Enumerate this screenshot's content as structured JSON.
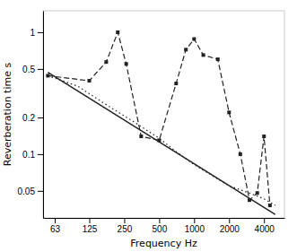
{
  "chart_data": {
    "type": "line",
    "xlabel": "Frequency Hz",
    "ylabel": "Reverberation time s",
    "log": true,
    "grid": false,
    "xlim": [
      50,
      6000
    ],
    "ylim": [
      0.03,
      1.5
    ],
    "xticks": [
      63,
      125,
      250,
      500,
      1000,
      2000,
      4000
    ],
    "yticks": [
      0.05,
      0.1,
      0.2,
      0.5,
      1
    ],
    "series": [
      {
        "color": "#222222",
        "line_style": "solid",
        "x": [
          55,
          5000
        ],
        "values": [
          0.47,
          0.032
        ]
      },
      {
        "color": "#222222",
        "line_style": "dotted",
        "x": [
          55,
          100,
          150,
          200,
          300,
          400,
          500,
          700,
          1000,
          1500,
          2000,
          3000,
          4000,
          5000
        ],
        "values": [
          0.44,
          0.36,
          0.28,
          0.235,
          0.185,
          0.155,
          0.135,
          0.105,
          0.082,
          0.065,
          0.055,
          0.048,
          0.043,
          0.038
        ]
      },
      {
        "color": "#222222",
        "line_style": "dashed",
        "marker": "square",
        "x": [
          55,
          125,
          175,
          220,
          260,
          350,
          500,
          700,
          850,
          1000,
          1200,
          1600,
          2000,
          2500,
          3000,
          3500,
          4000,
          4500
        ],
        "values": [
          0.44,
          0.4,
          0.57,
          1.0,
          0.55,
          0.14,
          0.13,
          0.38,
          0.72,
          0.88,
          0.65,
          0.6,
          0.22,
          0.1,
          0.042,
          0.048,
          0.14,
          0.038
        ]
      }
    ]
  }
}
